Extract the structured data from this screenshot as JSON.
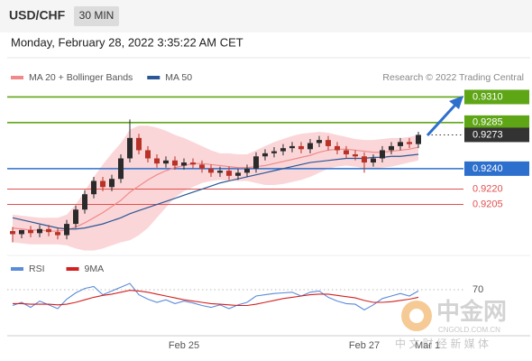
{
  "header": {
    "symbol": "USD/CHF",
    "timeframe": "30 MIN",
    "datetime": "Monday, February 28, 2022 3:35:22 AM CET"
  },
  "watermark": {
    "name": "中金网",
    "url": "CNGOLD.COM.CN",
    "tagline": "中 文 财 经 新 媒 体"
  },
  "chart_data": [
    {
      "type": "candlestick",
      "source": "Research © 2022 Trading Central",
      "xlim": [
        0,
        46
      ],
      "xticks": [
        {
          "value": 19,
          "label": "Feb 25"
        },
        {
          "value": 39,
          "label": "Feb 27"
        },
        {
          "value": 46,
          "label": "Mar 1"
        }
      ],
      "ylim": [
        0.9157,
        0.9321
      ],
      "up_color": "#2b2b2b",
      "down_color": "#b83227",
      "open": [
        0.9179,
        0.9176,
        0.918,
        0.9177,
        0.9181,
        0.9178,
        0.9175,
        0.9186,
        0.92,
        0.9215,
        0.9228,
        0.9222,
        0.923,
        0.925,
        0.927,
        0.9258,
        0.925,
        0.9245,
        0.9248,
        0.9243,
        0.9246,
        0.9244,
        0.924,
        0.9236,
        0.9238,
        0.9233,
        0.9236,
        0.924,
        0.9252,
        0.9255,
        0.9257,
        0.926,
        0.9262,
        0.9259,
        0.9265,
        0.9268,
        0.9262,
        0.9258,
        0.9254,
        0.9252,
        0.9246,
        0.925,
        0.9258,
        0.9262,
        0.9266,
        0.9264
      ],
      "high": [
        0.9183,
        0.918,
        0.9184,
        0.9185,
        0.9185,
        0.9182,
        0.919,
        0.9204,
        0.9219,
        0.9232,
        0.9232,
        0.9234,
        0.9254,
        0.9288,
        0.9274,
        0.9262,
        0.9254,
        0.9252,
        0.9252,
        0.925,
        0.925,
        0.9248,
        0.9244,
        0.9242,
        0.9242,
        0.924,
        0.9244,
        0.9256,
        0.9259,
        0.9261,
        0.9264,
        0.9266,
        0.9266,
        0.9269,
        0.9272,
        0.9272,
        0.9266,
        0.9262,
        0.9258,
        0.9256,
        0.9254,
        0.9262,
        0.9266,
        0.927,
        0.927,
        0.9276
      ],
      "low": [
        0.9168,
        0.9172,
        0.9173,
        0.9173,
        0.9174,
        0.9171,
        0.9171,
        0.9182,
        0.9196,
        0.9211,
        0.9218,
        0.9218,
        0.9226,
        0.9246,
        0.9254,
        0.9246,
        0.9241,
        0.9241,
        0.9239,
        0.9239,
        0.924,
        0.9236,
        0.9232,
        0.9232,
        0.9229,
        0.9229,
        0.9232,
        0.9236,
        0.9248,
        0.9251,
        0.9253,
        0.9256,
        0.9255,
        0.9255,
        0.9261,
        0.9258,
        0.9254,
        0.925,
        0.9248,
        0.9236,
        0.9242,
        0.9246,
        0.9254,
        0.9258,
        0.926,
        0.926
      ],
      "close": [
        0.9176,
        0.918,
        0.9177,
        0.9181,
        0.9178,
        0.9175,
        0.9186,
        0.92,
        0.9215,
        0.9228,
        0.9222,
        0.923,
        0.925,
        0.927,
        0.9258,
        0.925,
        0.9245,
        0.9248,
        0.9243,
        0.9246,
        0.9244,
        0.924,
        0.9236,
        0.9238,
        0.9233,
        0.9236,
        0.924,
        0.9252,
        0.9255,
        0.9257,
        0.926,
        0.9262,
        0.9259,
        0.9265,
        0.9268,
        0.9262,
        0.9258,
        0.9254,
        0.9252,
        0.9246,
        0.925,
        0.9258,
        0.9262,
        0.9266,
        0.9264,
        0.9273
      ],
      "series": [
        {
          "name": "MA 20 + Bollinger Bands",
          "color": "#f08a8a",
          "band_color": "#fbd6d8",
          "values": [
            0.9182,
            0.9181,
            0.918,
            0.918,
            0.9179,
            0.9179,
            0.918,
            0.9183,
            0.9187,
            0.9192,
            0.9197,
            0.9203,
            0.9209,
            0.9217,
            0.9223,
            0.9229,
            0.9234,
            0.9238,
            0.9241,
            0.9243,
            0.9245,
            0.9245,
            0.9244,
            0.9243,
            0.9242,
            0.9241,
            0.9241,
            0.9242,
            0.9243,
            0.9245,
            0.9247,
            0.9249,
            0.9251,
            0.9253,
            0.9256,
            0.9258,
            0.9259,
            0.9259,
            0.9258,
            0.9257,
            0.9256,
            0.9256,
            0.9257,
            0.9258,
            0.9259,
            0.9261
          ],
          "upper": [
            0.9195,
            0.9194,
            0.9193,
            0.9192,
            0.9192,
            0.9192,
            0.9195,
            0.9205,
            0.9218,
            0.9232,
            0.9244,
            0.9255,
            0.9265,
            0.9278,
            0.9282,
            0.9282,
            0.928,
            0.9277,
            0.9273,
            0.927,
            0.9266,
            0.9262,
            0.9258,
            0.9255,
            0.9255,
            0.9254,
            0.9254,
            0.9258,
            0.9262,
            0.9266,
            0.9269,
            0.9272,
            0.9274,
            0.9275,
            0.9276,
            0.9275,
            0.9273,
            0.9271,
            0.9269,
            0.9268,
            0.9268,
            0.9269,
            0.927,
            0.927,
            0.9271,
            0.9273
          ],
          "lower": [
            0.9168,
            0.9167,
            0.9166,
            0.9166,
            0.9166,
            0.9166,
            0.9165,
            0.9162,
            0.916,
            0.916,
            0.9162,
            0.9165,
            0.9168,
            0.917,
            0.9175,
            0.9182,
            0.9192,
            0.9202,
            0.9212,
            0.9218,
            0.9222,
            0.9226,
            0.9228,
            0.9229,
            0.9228,
            0.9228,
            0.9228,
            0.9226,
            0.9224,
            0.9224,
            0.9225,
            0.9227,
            0.9229,
            0.9232,
            0.9236,
            0.924,
            0.9242,
            0.9243,
            0.9242,
            0.924,
            0.924,
            0.9241,
            0.9242,
            0.9244,
            0.9246,
            0.9248
          ]
        },
        {
          "name": "MA 50",
          "color": "#2b5797",
          "values": [
            0.9192,
            0.919,
            0.9188,
            0.9186,
            0.9184,
            0.9182,
            0.9181,
            0.9181,
            0.9182,
            0.9184,
            0.9186,
            0.9189,
            0.9192,
            0.9196,
            0.9199,
            0.9202,
            0.9205,
            0.9208,
            0.9211,
            0.9214,
            0.9217,
            0.922,
            0.9223,
            0.9226,
            0.9228,
            0.923,
            0.9232,
            0.9234,
            0.9236,
            0.9238,
            0.924,
            0.9242,
            0.9244,
            0.9246,
            0.9247,
            0.9248,
            0.9249,
            0.925,
            0.925,
            0.925,
            0.9251,
            0.9251,
            0.9252,
            0.9252,
            0.9253,
            0.9254
          ]
        }
      ],
      "levels": [
        {
          "level": {
            "value": 0.931,
            "label": "0.9310"
          },
          "color": "#5fa617",
          "style": "box",
          "line": "solid"
        },
        {
          "level": 0.9285,
          "color": "#5fa617",
          "style": "box",
          "line": "solid"
        },
        {
          "level": 0.9273,
          "color": "#333333",
          "style": "box",
          "line": "dotted"
        },
        {
          "level": {
            "value": 0.924,
            "label": "0.9240"
          },
          "color": "#2d6fcc",
          "style": "box",
          "line": "solid"
        },
        {
          "level": {
            "value": 0.922,
            "label": "0.9220"
          },
          "color": "#e05050",
          "style": "text",
          "line": "thin"
        },
        {
          "level": 0.9205,
          "color": "#e05050",
          "style": "text",
          "line": "thin"
        }
      ]
    },
    {
      "type": "line",
      "xlim": [
        0,
        46
      ],
      "ylim": [
        0,
        100
      ],
      "yticks": [
        70
      ],
      "series": [
        {
          "name": "RSI",
          "color": "#5b8bd9",
          "values": [
            45,
            50,
            42,
            52,
            46,
            40,
            55,
            65,
            72,
            75,
            62,
            68,
            74,
            80,
            62,
            55,
            50,
            54,
            48,
            52,
            49,
            45,
            42,
            46,
            40,
            46,
            50,
            60,
            62,
            64,
            65,
            66,
            60,
            66,
            68,
            58,
            52,
            48,
            47,
            38,
            46,
            56,
            60,
            64,
            60,
            68
          ]
        },
        {
          "name": "9MA",
          "color": "#d42020",
          "values": [
            48,
            48,
            47,
            47,
            47,
            46,
            47,
            50,
            54,
            58,
            61,
            63,
            66,
            69,
            68,
            66,
            63,
            60,
            57,
            54,
            52,
            50,
            48,
            47,
            46,
            45,
            45,
            47,
            50,
            53,
            56,
            58,
            60,
            62,
            63,
            63,
            61,
            59,
            57,
            53,
            50,
            50,
            51,
            53,
            55,
            58
          ]
        }
      ]
    }
  ]
}
